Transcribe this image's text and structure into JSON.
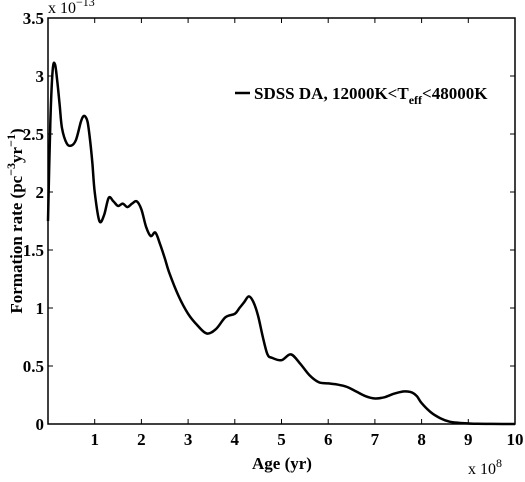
{
  "chart_data": {
    "type": "line",
    "title": "",
    "xlabel": "Age (yr)",
    "ylabel": "Formation rate (pc^-3 yr^-1)",
    "ylabel_parts": [
      "Formation rate (pc",
      "−3",
      "yr",
      "−1",
      ")"
    ],
    "x_multiplier_base": "x 10",
    "x_multiplier_exp": "8",
    "y_multiplier_base": "x 10",
    "y_multiplier_exp": "−13",
    "xlim": [
      0,
      10
    ],
    "ylim": [
      0,
      3.5
    ],
    "x_ticks": [
      1,
      2,
      3,
      4,
      5,
      6,
      7,
      8,
      9,
      10
    ],
    "x_tick_labels": [
      "1",
      "2",
      "3",
      "4",
      "5",
      "6",
      "7",
      "8",
      "9",
      "10"
    ],
    "y_ticks": [
      0,
      0.5,
      1,
      1.5,
      2,
      2.5,
      3,
      3.5
    ],
    "y_tick_labels": [
      "0",
      "0.5",
      "1",
      "1.5",
      "2",
      "2.5",
      "3",
      "3.5"
    ],
    "legend_position": "top-right",
    "series": [
      {
        "name": "SDSS DA, 12000K<Teff<48000K",
        "legend_parts": [
          "SDSS DA, 12000K<T",
          "eff",
          "<48000K"
        ],
        "color": "#000000",
        "x": [
          0,
          0.05,
          0.1,
          0.15,
          0.2,
          0.25,
          0.3,
          0.4,
          0.5,
          0.6,
          0.7,
          0.75,
          0.8,
          0.85,
          0.9,
          0.95,
          1.0,
          1.1,
          1.2,
          1.3,
          1.4,
          1.5,
          1.6,
          1.7,
          1.8,
          1.9,
          2.0,
          2.1,
          2.2,
          2.3,
          2.4,
          2.5,
          2.6,
          2.8,
          3.0,
          3.2,
          3.4,
          3.6,
          3.8,
          4.0,
          4.1,
          4.2,
          4.3,
          4.4,
          4.5,
          4.6,
          4.7,
          4.8,
          5.0,
          5.2,
          5.4,
          5.6,
          5.8,
          6.0,
          6.2,
          6.4,
          6.6,
          6.8,
          7.0,
          7.2,
          7.4,
          7.6,
          7.7,
          7.8,
          7.9,
          8.0,
          8.2,
          8.4,
          8.6,
          8.8,
          9.0,
          9.2,
          9.5,
          10.0
        ],
        "y": [
          1.75,
          2.6,
          3.05,
          3.1,
          2.95,
          2.75,
          2.55,
          2.42,
          2.4,
          2.45,
          2.6,
          2.65,
          2.65,
          2.6,
          2.45,
          2.25,
          2.0,
          1.75,
          1.8,
          1.95,
          1.92,
          1.88,
          1.9,
          1.87,
          1.9,
          1.92,
          1.85,
          1.7,
          1.62,
          1.65,
          1.55,
          1.43,
          1.3,
          1.1,
          0.95,
          0.85,
          0.78,
          0.82,
          0.92,
          0.95,
          1.0,
          1.05,
          1.1,
          1.05,
          0.93,
          0.75,
          0.6,
          0.57,
          0.55,
          0.6,
          0.52,
          0.42,
          0.36,
          0.35,
          0.34,
          0.32,
          0.28,
          0.24,
          0.22,
          0.23,
          0.26,
          0.28,
          0.28,
          0.27,
          0.24,
          0.18,
          0.1,
          0.05,
          0.02,
          0.01,
          0.005,
          0.002,
          0.001,
          0.0
        ]
      }
    ]
  }
}
